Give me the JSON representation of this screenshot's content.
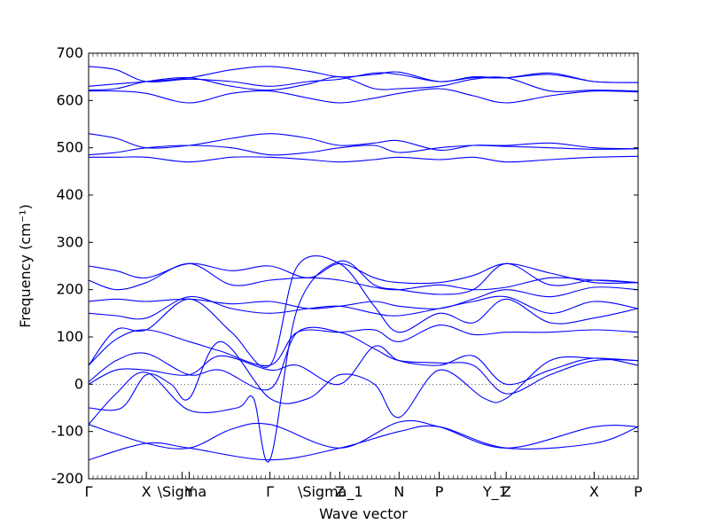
{
  "chart_data": {
    "type": "line",
    "xlabel": "Wave vector",
    "ylabel": "Frequency (cm⁻¹)",
    "ylim": [
      -200,
      700
    ],
    "y_ticks": [
      -200,
      -100,
      0,
      100,
      200,
      300,
      400,
      500,
      600,
      700
    ],
    "x_range": [
      0,
      1
    ],
    "high_symmetry_points": [
      {
        "label": "Γ",
        "x": 0.0
      },
      {
        "label": "X",
        "x": 0.105
      },
      {
        "label": "\\Sigma",
        "x": 0.17
      },
      {
        "label": "Y",
        "x": 0.183
      },
      {
        "label": "Γ",
        "x": 0.33
      },
      {
        "label": "\\Sigma_1",
        "x": 0.44
      },
      {
        "label": "Z",
        "x": 0.457
      },
      {
        "label": "N",
        "x": 0.565
      },
      {
        "label": "P",
        "x": 0.638
      },
      {
        "label": "Y_1",
        "x": 0.74
      },
      {
        "label": "Z",
        "x": 0.76
      },
      {
        "label": "X",
        "x": 0.92
      },
      {
        "label": "P",
        "x": 1.0
      }
    ],
    "zero_line": true,
    "line_color": "#0000ff",
    "series": [
      {
        "x": [
          0,
          0.105,
          0.183,
          0.33,
          0.457,
          0.565,
          0.638,
          0.76,
          0.92,
          1.0
        ],
        "values": [
          -160,
          -125,
          -135,
          -160,
          -135,
          -100,
          -90,
          -135,
          -125,
          -90
        ]
      },
      {
        "x": [
          0,
          0.105,
          0.183,
          0.26,
          0.33,
          0.457,
          0.565,
          0.638,
          0.76,
          0.92,
          1.0
        ],
        "values": [
          -85,
          -125,
          -135,
          -95,
          -85,
          -135,
          -80,
          -90,
          -135,
          -90,
          -90
        ]
      },
      {
        "x": [
          0,
          0.05,
          0.105,
          0.183,
          0.27,
          0.3,
          0.33,
          0.38,
          0.457,
          0.52,
          0.565,
          0.638,
          0.7,
          0.76,
          0.84,
          0.92,
          1.0
        ],
        "values": [
          -85,
          -20,
          25,
          -55,
          -50,
          -30,
          -160,
          160,
          260,
          210,
          200,
          190,
          200,
          255,
          210,
          220,
          215
        ]
      },
      {
        "x": [
          0,
          0.06,
          0.105,
          0.15,
          0.183,
          0.24,
          0.33,
          0.4,
          0.457,
          0.52,
          0.565,
          0.638,
          0.72,
          0.76,
          0.84,
          0.92,
          1.0
        ],
        "values": [
          -50,
          -50,
          20,
          0,
          -30,
          90,
          -30,
          -30,
          20,
          0,
          -70,
          30,
          -30,
          -30,
          50,
          55,
          50
        ]
      },
      {
        "x": [
          0,
          0.05,
          0.105,
          0.183,
          0.24,
          0.33,
          0.38,
          0.457,
          0.52,
          0.565,
          0.638,
          0.7,
          0.76,
          0.84,
          0.92,
          1.0
        ],
        "values": [
          0,
          30,
          30,
          20,
          60,
          30,
          40,
          0,
          80,
          50,
          40,
          60,
          0,
          30,
          55,
          40
        ]
      },
      {
        "x": [
          0,
          0.05,
          0.105,
          0.183,
          0.24,
          0.33,
          0.38,
          0.457,
          0.52,
          0.565,
          0.638,
          0.7,
          0.76,
          0.84,
          0.92,
          1.0
        ],
        "values": [
          5,
          50,
          65,
          20,
          30,
          -10,
          110,
          110,
          75,
          50,
          45,
          40,
          -20,
          20,
          50,
          50
        ]
      },
      {
        "x": [
          0,
          0.05,
          0.105,
          0.183,
          0.24,
          0.33,
          0.38,
          0.457,
          0.52,
          0.565,
          0.638,
          0.7,
          0.76,
          0.84,
          0.92,
          1.0
        ],
        "values": [
          40,
          95,
          115,
          90,
          70,
          40,
          110,
          110,
          115,
          90,
          125,
          105,
          110,
          110,
          115,
          110
        ]
      },
      {
        "x": [
          0,
          0.05,
          0.105,
          0.183,
          0.26,
          0.33,
          0.38,
          0.457,
          0.52,
          0.565,
          0.638,
          0.7,
          0.76,
          0.84,
          0.92,
          1.0
        ],
        "values": [
          40,
          115,
          115,
          180,
          110,
          40,
          250,
          255,
          165,
          110,
          150,
          130,
          180,
          130,
          140,
          160
        ]
      },
      {
        "x": [
          0,
          0.05,
          0.105,
          0.183,
          0.26,
          0.33,
          0.4,
          0.457,
          0.52,
          0.565,
          0.638,
          0.7,
          0.76,
          0.84,
          0.92,
          1.0
        ],
        "values": [
          150,
          145,
          140,
          185,
          160,
          150,
          160,
          165,
          150,
          145,
          160,
          175,
          185,
          150,
          175,
          160
        ]
      },
      {
        "x": [
          0,
          0.05,
          0.105,
          0.183,
          0.26,
          0.33,
          0.4,
          0.457,
          0.52,
          0.565,
          0.638,
          0.7,
          0.76,
          0.84,
          0.92,
          1.0
        ],
        "values": [
          175,
          180,
          175,
          180,
          170,
          175,
          160,
          165,
          175,
          165,
          160,
          180,
          200,
          185,
          205,
          200
        ]
      },
      {
        "x": [
          0,
          0.05,
          0.105,
          0.183,
          0.26,
          0.33,
          0.4,
          0.457,
          0.52,
          0.565,
          0.638,
          0.7,
          0.76,
          0.84,
          0.92,
          1.0
        ],
        "values": [
          220,
          200,
          215,
          255,
          210,
          220,
          225,
          220,
          205,
          200,
          210,
          200,
          205,
          225,
          220,
          215
        ]
      },
      {
        "x": [
          0,
          0.05,
          0.105,
          0.183,
          0.26,
          0.33,
          0.4,
          0.457,
          0.52,
          0.565,
          0.638,
          0.7,
          0.76,
          0.84,
          0.92,
          1.0
        ],
        "values": [
          250,
          240,
          225,
          255,
          240,
          250,
          225,
          255,
          225,
          215,
          215,
          230,
          255,
          235,
          215,
          215
        ]
      },
      {
        "x": [
          0,
          0.05,
          0.105,
          0.183,
          0.26,
          0.33,
          0.4,
          0.457,
          0.52,
          0.565,
          0.638,
          0.7,
          0.76,
          0.84,
          0.92,
          1.0
        ],
        "values": [
          480,
          480,
          480,
          470,
          480,
          480,
          475,
          470,
          475,
          480,
          475,
          480,
          470,
          475,
          480,
          482
        ]
      },
      {
        "x": [
          0,
          0.05,
          0.105,
          0.183,
          0.26,
          0.33,
          0.4,
          0.457,
          0.52,
          0.565,
          0.638,
          0.7,
          0.76,
          0.84,
          0.92,
          1.0
        ],
        "values": [
          485,
          490,
          500,
          505,
          500,
          485,
          490,
          500,
          505,
          490,
          500,
          505,
          503,
          500,
          497,
          498
        ]
      },
      {
        "x": [
          0,
          0.05,
          0.105,
          0.183,
          0.26,
          0.33,
          0.4,
          0.457,
          0.52,
          0.565,
          0.638,
          0.7,
          0.76,
          0.84,
          0.92,
          1.0
        ],
        "values": [
          530,
          520,
          500,
          505,
          520,
          530,
          520,
          505,
          510,
          515,
          495,
          505,
          505,
          510,
          500,
          498
        ]
      },
      {
        "x": [
          0,
          0.05,
          0.105,
          0.183,
          0.26,
          0.33,
          0.4,
          0.457,
          0.52,
          0.565,
          0.638,
          0.7,
          0.76,
          0.84,
          0.92,
          1.0
        ],
        "values": [
          620,
          620,
          615,
          595,
          615,
          620,
          605,
          595,
          605,
          615,
          625,
          610,
          595,
          610,
          620,
          618
        ]
      },
      {
        "x": [
          0,
          0.05,
          0.105,
          0.183,
          0.26,
          0.33,
          0.4,
          0.457,
          0.52,
          0.565,
          0.638,
          0.7,
          0.76,
          0.84,
          0.92,
          1.0
        ],
        "values": [
          622,
          625,
          640,
          648,
          630,
          622,
          635,
          650,
          625,
          625,
          630,
          645,
          648,
          620,
          622,
          620
        ]
      },
      {
        "x": [
          0,
          0.05,
          0.105,
          0.183,
          0.26,
          0.33,
          0.4,
          0.457,
          0.52,
          0.565,
          0.638,
          0.7,
          0.76,
          0.84,
          0.92,
          1.0
        ],
        "values": [
          630,
          635,
          640,
          648,
          665,
          672,
          662,
          650,
          655,
          660,
          640,
          650,
          648,
          655,
          640,
          638
        ]
      },
      {
        "x": [
          0,
          0.05,
          0.105,
          0.183,
          0.26,
          0.33,
          0.4,
          0.457,
          0.52,
          0.565,
          0.638,
          0.7,
          0.76,
          0.84,
          0.92,
          1.0
        ],
        "values": [
          672,
          665,
          640,
          645,
          640,
          630,
          640,
          645,
          658,
          655,
          640,
          648,
          648,
          658,
          640,
          638
        ]
      }
    ]
  }
}
